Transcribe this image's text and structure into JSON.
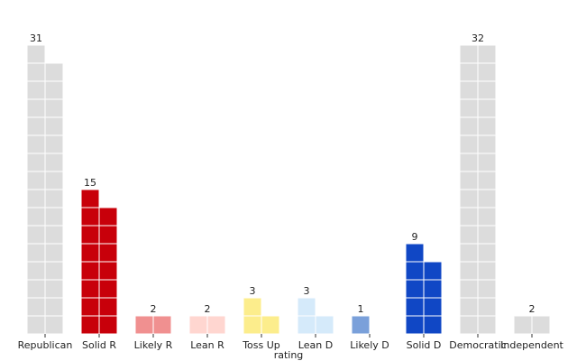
{
  "chart_data": {
    "type": "bar",
    "subtype": "waffle-stacked-squares",
    "xlabel": "rating",
    "ylabel": "",
    "title": "",
    "grid": false,
    "categories": [
      "Republican",
      "Solid R",
      "Likely R",
      "Lean R",
      "Toss Up",
      "Lean D",
      "Likely D",
      "Solid D",
      "Democratic",
      "Independent"
    ],
    "values": [
      31,
      15,
      2,
      2,
      3,
      3,
      1,
      9,
      32,
      2
    ],
    "colors": [
      "#dcdcdc",
      "#c8000a",
      "#f09090",
      "#ffd6d0",
      "#fced8c",
      "#d5eafa",
      "#7aa0da",
      "#1047c5",
      "#dcdcdc",
      "#dcdcdc"
    ],
    "squares_per_row": 2
  }
}
